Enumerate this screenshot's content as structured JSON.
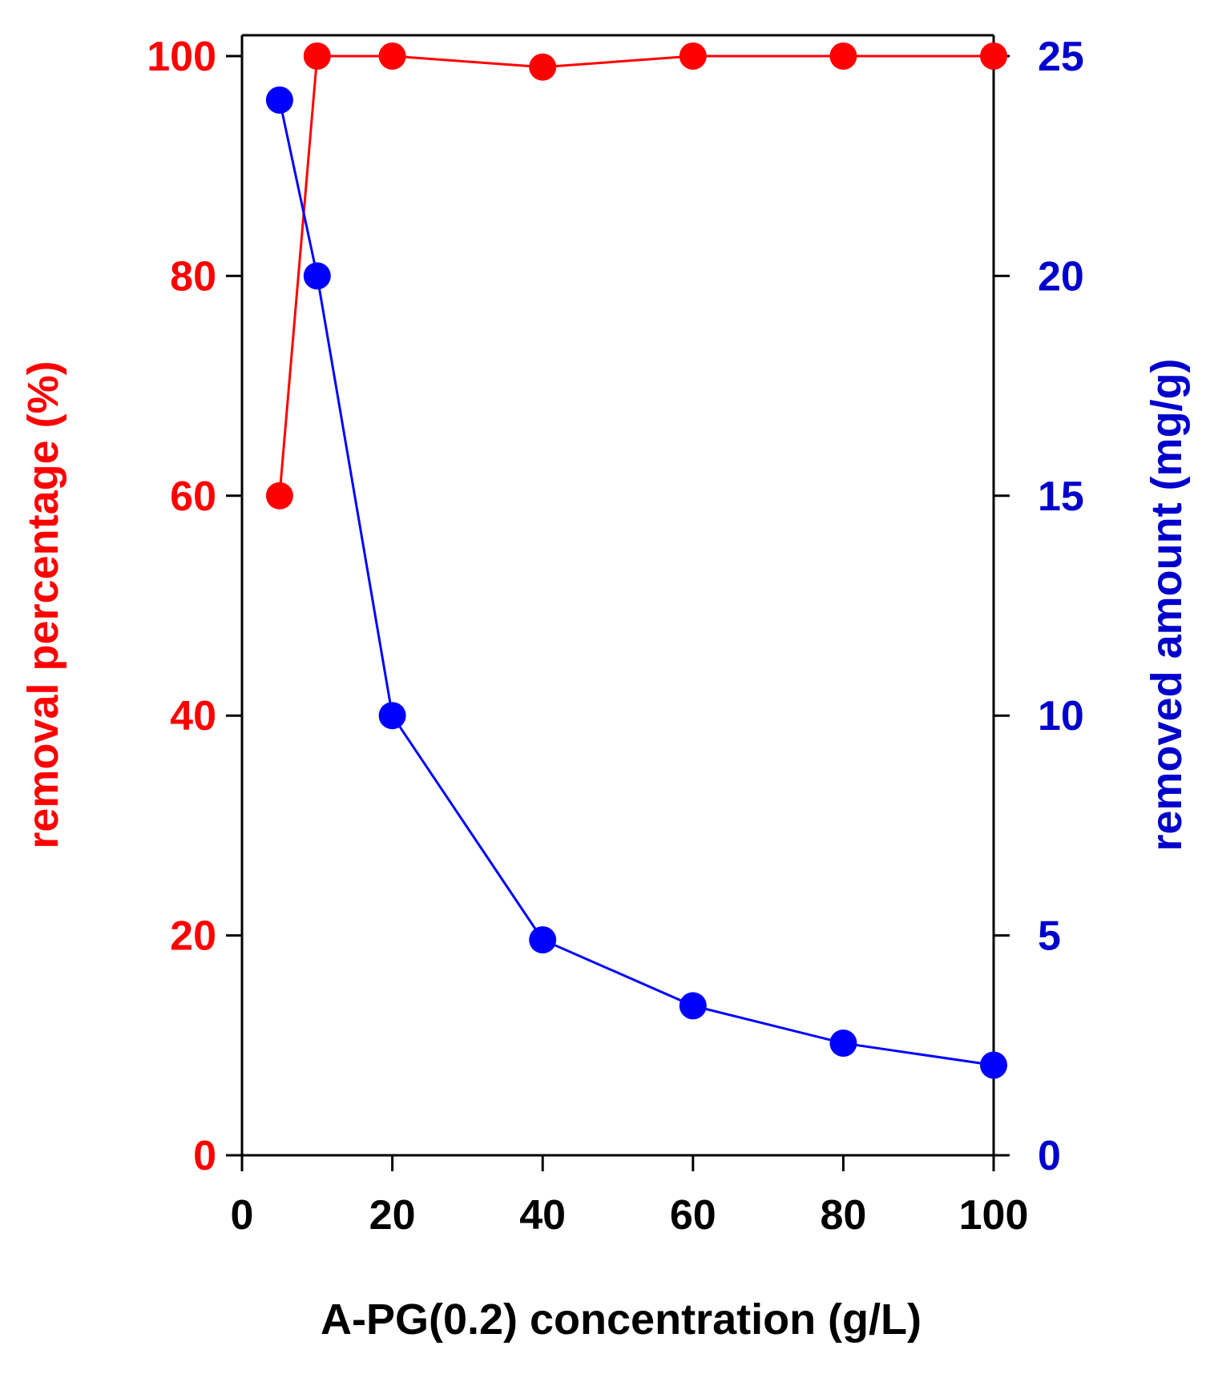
{
  "chart_data": {
    "type": "line",
    "title": "",
    "xlabel": "A-PG(0.2) concentration (g/L)",
    "ylabel_left": "removal percentage (%)",
    "ylabel_right": "removed amount (mg/g)",
    "xlim": [
      0,
      100
    ],
    "ylim_left": [
      0,
      100
    ],
    "ylim_right": [
      0,
      25
    ],
    "x_ticks": [
      0,
      20,
      40,
      60,
      80,
      100
    ],
    "y_left_ticks": [
      0,
      20,
      40,
      60,
      80,
      100
    ],
    "y_right_ticks": [
      0,
      5,
      10,
      15,
      20,
      25
    ],
    "grid": false,
    "legend": "none",
    "x": [
      5,
      10,
      20,
      40,
      60,
      80,
      100
    ],
    "series": [
      {
        "axis": "left",
        "color": "#ff0000",
        "values": [
          60,
          100,
          100,
          99,
          100,
          100,
          100
        ]
      },
      {
        "axis": "right",
        "color": "#0000ff",
        "values": [
          24,
          20,
          10,
          4.9,
          3.4,
          2.55,
          2.05
        ]
      }
    ],
    "axis_colors": {
      "x": "#000000",
      "left": "#ff0000",
      "right": "#0000cc"
    }
  }
}
